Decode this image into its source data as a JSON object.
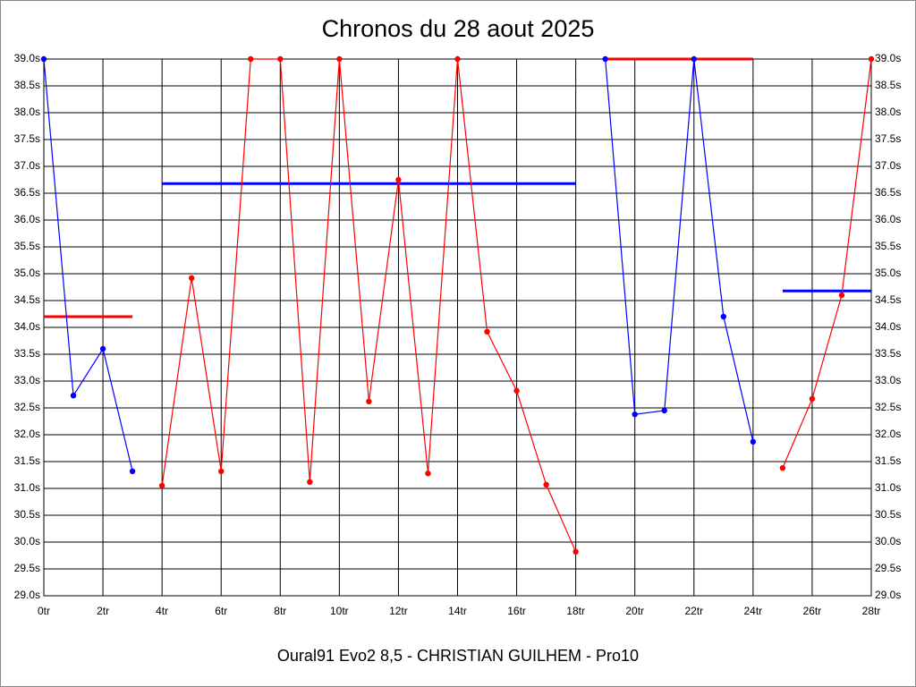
{
  "chart_data": {
    "type": "line",
    "title": "Chronos du 28 aout 2025",
    "footer": "Oural91  Evo2  8,5 - CHRISTIAN GUILHEM - Pro10",
    "xlim": [
      0,
      28
    ],
    "xticks": [
      {
        "value": 0,
        "label": "0tr"
      },
      {
        "value": 2,
        "label": "2tr"
      },
      {
        "value": 4,
        "label": "4tr"
      },
      {
        "value": 6,
        "label": "6tr"
      },
      {
        "value": 8,
        "label": "8tr"
      },
      {
        "value": 10,
        "label": "10tr"
      },
      {
        "value": 12,
        "label": "12tr"
      },
      {
        "value": 14,
        "label": "14tr"
      },
      {
        "value": 16,
        "label": "16tr"
      },
      {
        "value": 18,
        "label": "18tr"
      },
      {
        "value": 20,
        "label": "20tr"
      },
      {
        "value": 22,
        "label": "22tr"
      },
      {
        "value": 24,
        "label": "24tr"
      },
      {
        "value": 26,
        "label": "26tr"
      },
      {
        "value": 28,
        "label": "28tr"
      }
    ],
    "ylim": [
      29,
      39
    ],
    "yticks": [
      {
        "value": 29,
        "label": "29.0s"
      },
      {
        "value": 29.5,
        "label": "29.5s"
      },
      {
        "value": 30,
        "label": "30.0s"
      },
      {
        "value": 30.5,
        "label": "30.5s"
      },
      {
        "value": 31,
        "label": "31.0s"
      },
      {
        "value": 31.5,
        "label": "31.5s"
      },
      {
        "value": 32,
        "label": "32.0s"
      },
      {
        "value": 32.5,
        "label": "32.5s"
      },
      {
        "value": 33,
        "label": "33.0s"
      },
      {
        "value": 33.5,
        "label": "33.5s"
      },
      {
        "value": 34,
        "label": "34.0s"
      },
      {
        "value": 34.5,
        "label": "34.5s"
      },
      {
        "value": 35,
        "label": "35.0s"
      },
      {
        "value": 35.5,
        "label": "35.5s"
      },
      {
        "value": 36,
        "label": "36.0s"
      },
      {
        "value": 36.5,
        "label": "36.5s"
      },
      {
        "value": 37,
        "label": "37.0s"
      },
      {
        "value": 37.5,
        "label": "37.5s"
      },
      {
        "value": 38,
        "label": "38.0s"
      },
      {
        "value": 38.5,
        "label": "38.5s"
      },
      {
        "value": 39,
        "label": "39.0s"
      }
    ],
    "grid": true,
    "series": [
      {
        "color": "#0000ff",
        "x": [
          0,
          1,
          2,
          3
        ],
        "values": [
          39.0,
          32.73,
          33.6,
          31.32
        ]
      },
      {
        "color": "#ff0000",
        "x": [
          4,
          5,
          6,
          7,
          8,
          9,
          10,
          11,
          12,
          13,
          14,
          15,
          16,
          17,
          18
        ],
        "values": [
          31.05,
          34.92,
          31.32,
          39.0,
          39.0,
          31.12,
          39.0,
          32.62,
          36.75,
          31.28,
          39.0,
          33.92,
          32.82,
          31.07,
          29.82
        ]
      },
      {
        "color": "#0000ff",
        "x": [
          19,
          20,
          21,
          22,
          23,
          24
        ],
        "values": [
          39.0,
          32.38,
          32.45,
          39.0,
          34.2,
          31.87
        ]
      },
      {
        "color": "#ff0000",
        "x": [
          25,
          26,
          27,
          28
        ],
        "values": [
          31.38,
          32.67,
          34.6,
          39.0
        ]
      }
    ],
    "averages": [
      {
        "color": "#ff0000",
        "x": [
          0,
          3
        ],
        "value": 34.2
      },
      {
        "color": "#0000ff",
        "x": [
          4,
          18
        ],
        "value": 36.68
      },
      {
        "color": "#ff0000",
        "x": [
          19,
          24
        ],
        "value": 39.0
      },
      {
        "color": "#0000ff",
        "x": [
          25,
          28
        ],
        "value": 34.68
      }
    ]
  }
}
